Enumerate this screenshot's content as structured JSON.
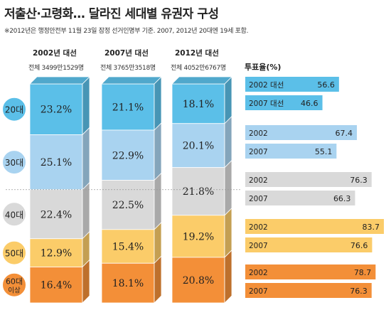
{
  "title": "저출산·고령화… 달라진 세대별 유권자 구성",
  "note": "※2012년은 행정안전부 11월 23일 잠정 선거인명부 기준. 2007, 2012년 20대엔 19세 포함.",
  "colors": {
    "20s": "#5bbfe8",
    "30s": "#a9d3f0",
    "40s": "#d9d9d9",
    "50s": "#fbcc69",
    "60s": "#f38f38"
  },
  "chart_data": [
    {
      "type": "bar",
      "stacked": true,
      "percent": true,
      "categories": [
        "2002년 대선",
        "2007년 대선",
        "2012년 대선"
      ],
      "category_subtitles": [
        "전체 3499만1529명",
        "전체 3765만3518명",
        "전체 4052만6767명"
      ],
      "series": [
        {
          "name": "20대",
          "color": "#5bbfe8",
          "values": [
            23.2,
            21.1,
            18.1
          ]
        },
        {
          "name": "30대",
          "color": "#a9d3f0",
          "values": [
            25.1,
            22.9,
            20.1
          ]
        },
        {
          "name": "40대",
          "color": "#d9d9d9",
          "values": [
            22.4,
            22.5,
            21.8
          ]
        },
        {
          "name": "50대",
          "color": "#fbcc69",
          "values": [
            12.9,
            15.4,
            19.2
          ]
        },
        {
          "name": "60대 이상",
          "color": "#f38f38",
          "values": [
            16.4,
            18.1,
            20.8
          ]
        }
      ]
    },
    {
      "type": "bar",
      "orientation": "horizontal",
      "title": "투표율(%)",
      "groups": [
        {
          "age": "20대",
          "color": "#5bbfe8",
          "bars": [
            {
              "label": "2002 대선",
              "value": 56.6
            },
            {
              "label": "2007 대선",
              "value": 46.6
            }
          ]
        },
        {
          "age": "30대",
          "color": "#a9d3f0",
          "bars": [
            {
              "label": "2002",
              "value": 67.4
            },
            {
              "label": "2007",
              "value": 55.1
            }
          ]
        },
        {
          "age": "40대",
          "color": "#d9d9d9",
          "bars": [
            {
              "label": "2002",
              "value": 76.3
            },
            {
              "label": "2007",
              "value": 66.3
            }
          ]
        },
        {
          "age": "50대",
          "color": "#fbcc69",
          "bars": [
            {
              "label": "2002",
              "value": 83.7
            },
            {
              "label": "2007",
              "value": 76.6
            }
          ]
        },
        {
          "age": "60대 이상",
          "color": "#f38f38",
          "bars": [
            {
              "label": "2002",
              "value": 78.7
            },
            {
              "label": "2007",
              "value": 76.3
            }
          ]
        }
      ]
    }
  ]
}
